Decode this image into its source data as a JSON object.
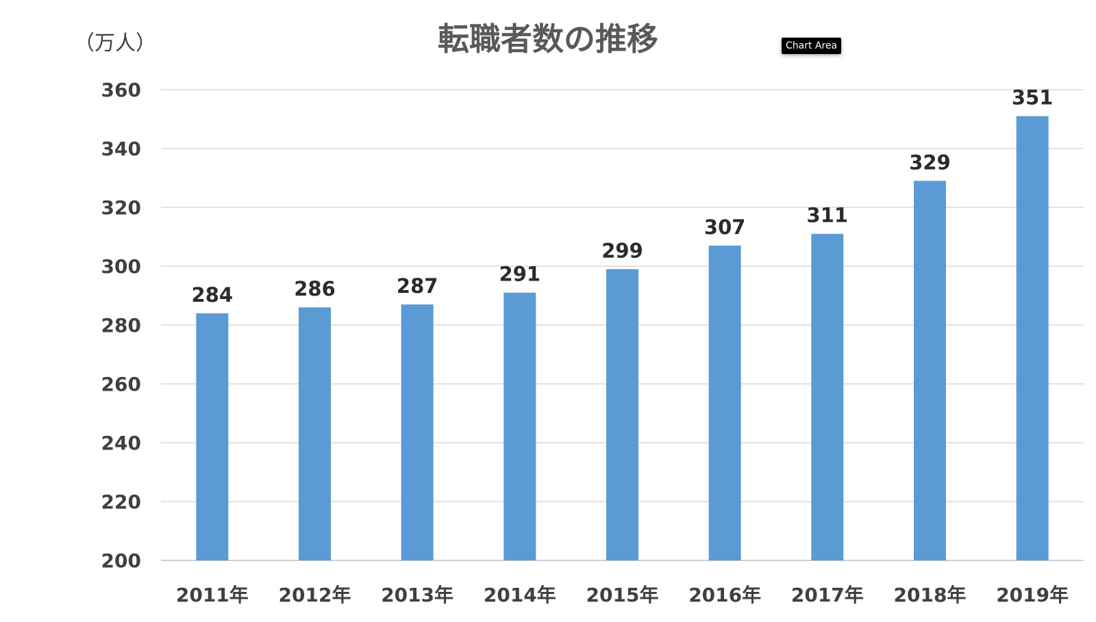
{
  "tooltip": {
    "text": "Chart Area"
  },
  "colors": {
    "bar": "#5B9BD5",
    "gridline": "#d9d9d9",
    "text": "#404040",
    "title": "#595959"
  },
  "chart_data": {
    "type": "bar",
    "title": "転職者数の推移",
    "unit_label": "（万人）",
    "xlabel": "",
    "ylabel": "（万人）",
    "categories": [
      "2011年",
      "2012年",
      "2013年",
      "2014年",
      "2015年",
      "2016年",
      "2017年",
      "2018年",
      "2019年"
    ],
    "values": [
      284,
      286,
      287,
      291,
      299,
      307,
      311,
      329,
      351
    ],
    "ylim": [
      200,
      360
    ],
    "yticks": [
      200,
      220,
      240,
      260,
      280,
      300,
      320,
      340,
      360
    ],
    "grid": true,
    "legend": false,
    "data_labels": true
  }
}
